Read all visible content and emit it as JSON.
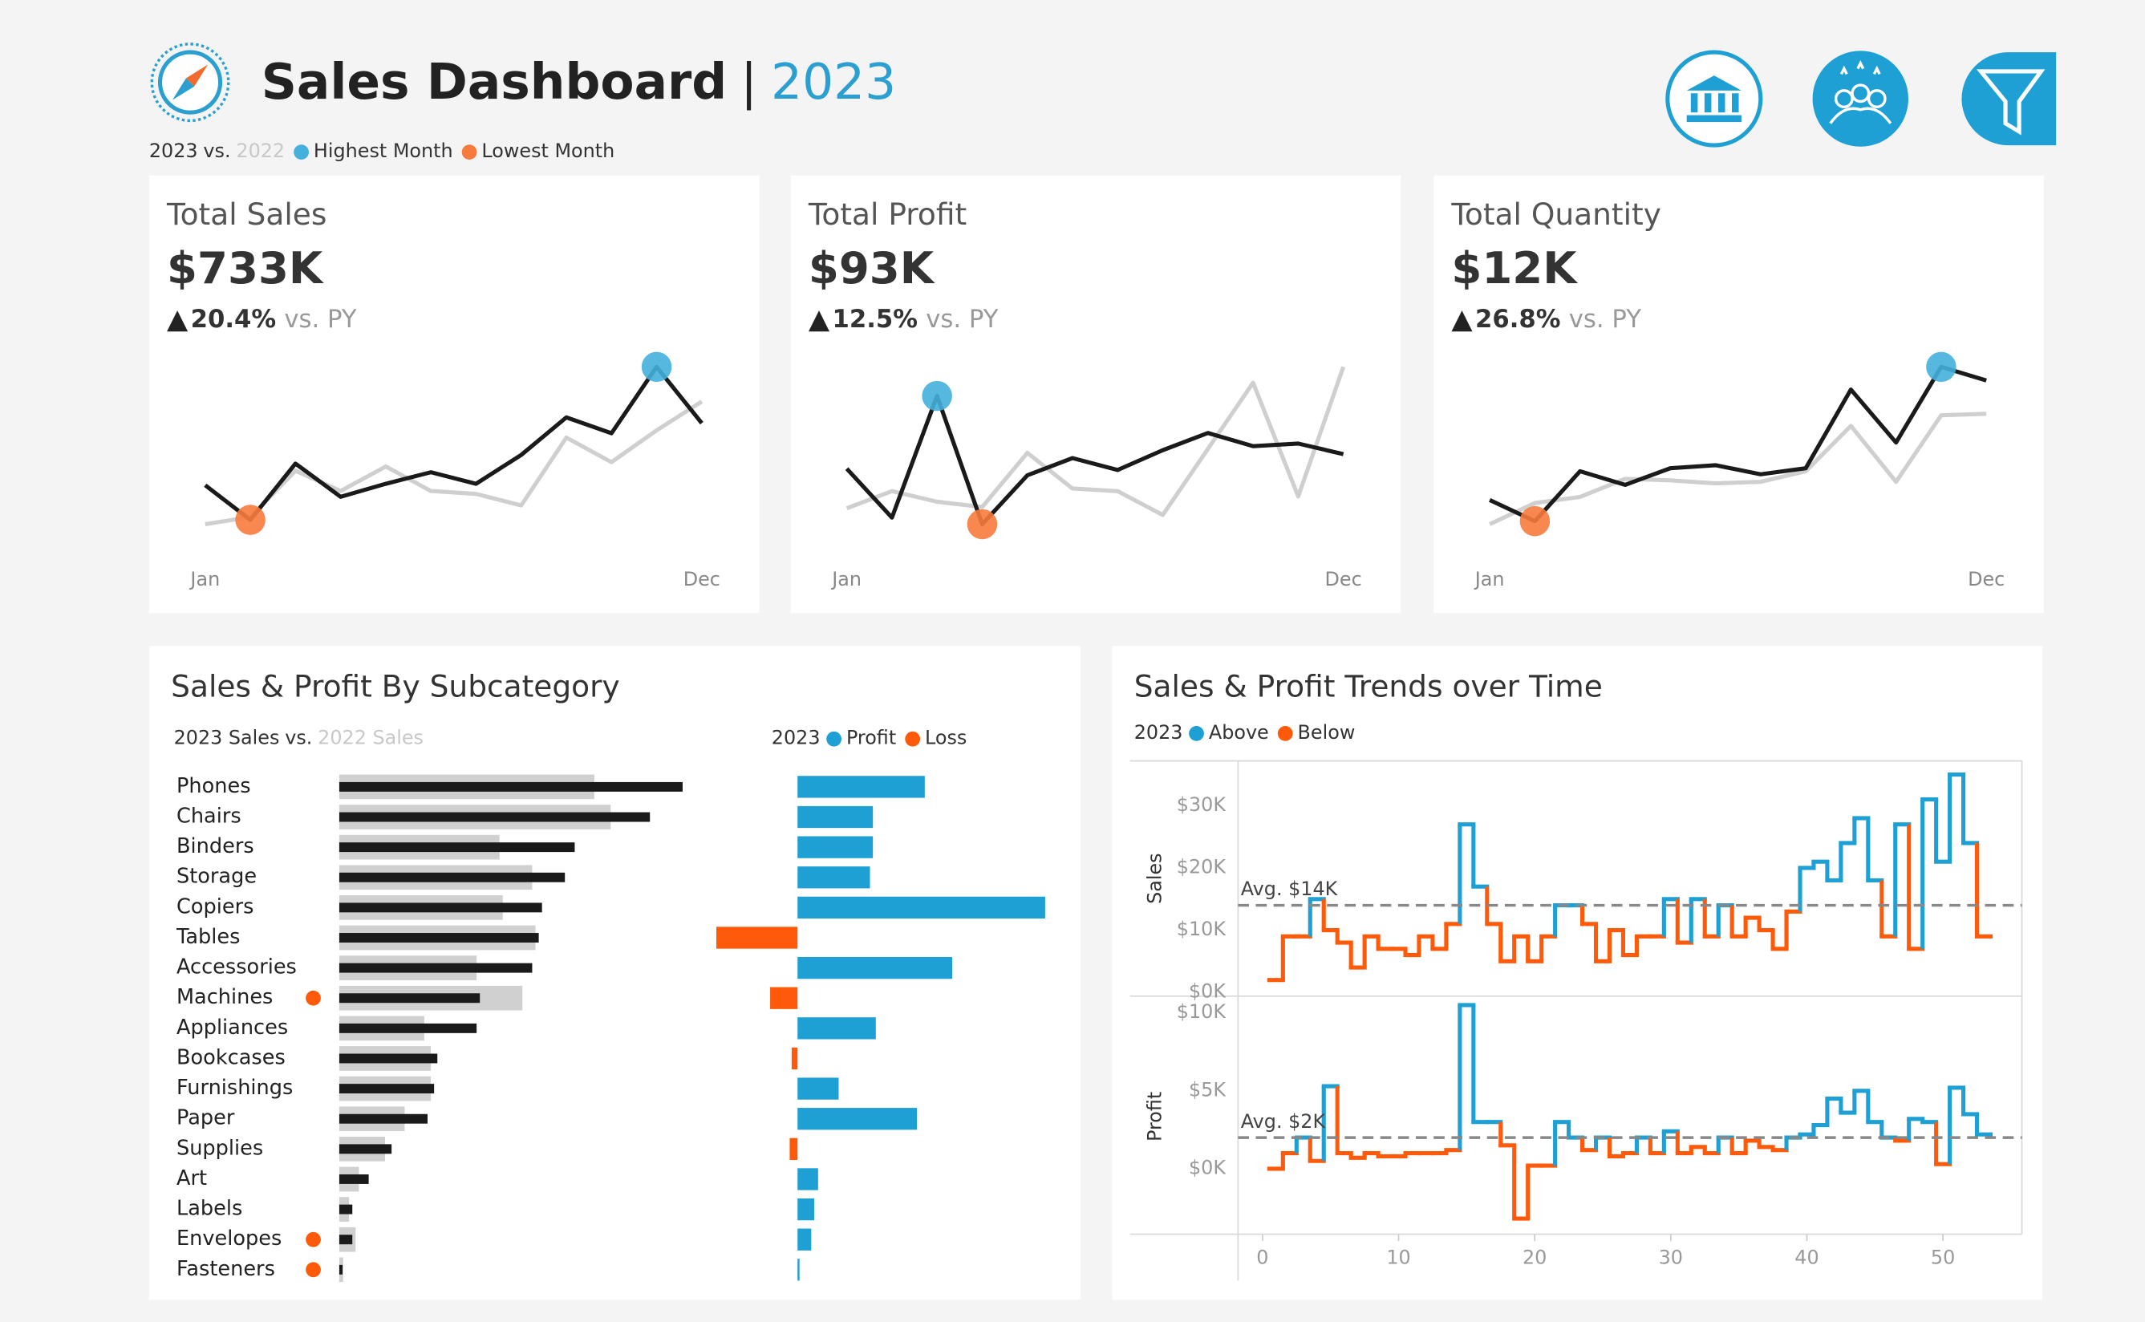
{
  "header": {
    "title": "Sales Dashboard",
    "separator": "|",
    "year": "2023",
    "legend_joiner": "vs.",
    "highest_label": "Highest Month",
    "lowest_label": "Lowest Month"
  },
  "chart_data": [
    {
      "type": "line",
      "title": "Total Sales",
      "kpi": "$733K",
      "change_arrow": "▲",
      "change": "20.4%",
      "change_suffix": "vs. PY",
      "categories": [
        "Jan",
        null,
        null,
        null,
        null,
        null,
        null,
        null,
        null,
        null,
        null,
        "Dec"
      ],
      "series": [
        {
          "name": "2023",
          "color": "#1a1a1a",
          "values": [
            36,
            24,
            43.5,
            32,
            36.5,
            40.5,
            36.5,
            46.5,
            59.5,
            54,
            77,
            57.5
          ]
        },
        {
          "name": "2022",
          "color": "#cfcfcf",
          "values": [
            22.5,
            25,
            41,
            34,
            42.5,
            34,
            33,
            29,
            52.5,
            44,
            55,
            65
          ]
        }
      ],
      "highest_color": "#45b0dc",
      "lowest_color": "#f77b3c"
    },
    {
      "type": "line",
      "title": "Total Profit",
      "kpi": "$93K",
      "change_arrow": "▲",
      "change": "12.5%",
      "change_suffix": "vs. PY",
      "categories": [
        "Jan",
        null,
        null,
        null,
        null,
        null,
        null,
        null,
        null,
        null,
        null,
        "Dec"
      ],
      "series": [
        {
          "name": "2023",
          "color": "#1a1a1a",
          "values": [
            8.5,
            4.8,
            14,
            4.3,
            8,
            9.3,
            8.4,
            9.9,
            11.2,
            10.2,
            10.4,
            9.6
          ]
        },
        {
          "name": "2022",
          "color": "#cfcfcf",
          "values": [
            5.5,
            6.8,
            6,
            5.6,
            9.7,
            7,
            6.8,
            5,
            10,
            15,
            6.4,
            16.2
          ]
        }
      ],
      "highest_color": "#45b0dc",
      "lowest_color": "#f77b3c"
    },
    {
      "type": "line",
      "title": "Total Quantity",
      "kpi": "$12K",
      "change_arrow": "▲",
      "change": "26.8%",
      "change_suffix": "vs. PY",
      "categories": [
        "Jan",
        null,
        null,
        null,
        null,
        null,
        null,
        null,
        null,
        null,
        null,
        "Dec"
      ],
      "series": [
        {
          "name": "2023",
          "color": "#1a1a1a",
          "values": [
            1.32,
            1.04,
            1.7,
            1.52,
            1.74,
            1.78,
            1.66,
            1.74,
            2.78,
            2.08,
            3.08,
            2.9
          ]
        },
        {
          "name": "2022",
          "color": "#cfcfcf",
          "values": [
            1,
            1.28,
            1.36,
            1.6,
            1.58,
            1.54,
            1.56,
            1.7,
            2.3,
            1.56,
            2.44,
            2.46
          ]
        }
      ],
      "highest_color": "#45b0dc",
      "lowest_color": "#f77b3c"
    },
    {
      "type": "hbar",
      "title": "Sales & Profit By Subcategory",
      "legend_joiner": "vs.",
      "categories": [
        "Phones",
        "Chairs",
        "Binders",
        "Storage",
        "Copiers",
        "Tables",
        "Accessories",
        "Machines",
        "Appliances",
        "Bookcases",
        "Furnishings",
        "Paper",
        "Supplies",
        "Art",
        "Labels",
        "Envelopes",
        "Fasteners"
      ],
      "series": [
        {
          "name": "2023 Sales",
          "color": "#1a1a1a",
          "values": [
            105,
            95,
            72,
            69,
            62,
            61,
            59,
            43,
            42,
            30,
            29,
            27,
            16,
            9,
            4,
            4,
            1
          ]
        },
        {
          "name": "2022 Sales",
          "color": "#d0d0d0",
          "values": [
            78,
            83,
            49,
            59,
            50,
            60,
            42,
            56,
            26,
            28,
            28,
            20,
            14,
            6,
            3,
            5,
            1.2
          ]
        }
      ],
      "decline_color": "#ff5a0a"
    },
    {
      "type": "divbar",
      "legend_year": "2023",
      "series": [
        {
          "name": "Profit",
          "color": "#1ea0d4",
          "values": [
            13,
            7.7,
            7.7,
            7.4,
            25.3,
            -8.3,
            15.8,
            -2.8,
            8,
            -0.6,
            4.2,
            12.2,
            -0.8,
            2.1,
            1.7,
            1.4,
            0.2
          ]
        }
      ],
      "negative_name": "Loss",
      "negative_color": "#ff5a0a"
    },
    {
      "type": "step",
      "title": "Sales & Profit Trends over Time",
      "legend_year": "2023",
      "above_label": "Above",
      "below_label": "Below",
      "y_label": "Sales",
      "above_color": "#1ea0d4",
      "below_color": "#ff5a0a",
      "avg": 14,
      "avg_label": "Avg. $14K",
      "x": [
        1,
        2,
        3,
        4,
        5,
        6,
        7,
        8,
        9,
        10,
        11,
        12,
        13,
        14,
        15,
        16,
        17,
        18,
        19,
        20,
        21,
        22,
        23,
        24,
        25,
        26,
        27,
        28,
        29,
        30,
        31,
        32,
        33,
        34,
        35,
        36,
        37,
        38,
        39,
        40,
        41,
        42,
        43,
        44,
        45,
        46,
        47,
        48,
        49,
        50,
        51,
        52,
        53
      ],
      "values": [
        2,
        9,
        9,
        15,
        10,
        8,
        4,
        9,
        7,
        7,
        6,
        9,
        7,
        11,
        27,
        17,
        11,
        5,
        9,
        5,
        9,
        14,
        14,
        11,
        5,
        10,
        6,
        9,
        9,
        15,
        8,
        15,
        9,
        14,
        9,
        12,
        10,
        7,
        13,
        20,
        21,
        18,
        24,
        28,
        18,
        9,
        27,
        7,
        31,
        21,
        35,
        24,
        9
      ],
      "xlim": [
        -1.8,
        55.8
      ],
      "ylim": [
        -0.6,
        37.2
      ],
      "yticks": [
        {
          "value": 0,
          "label": "$0K"
        },
        {
          "value": 10,
          "label": "$10K"
        },
        {
          "value": 20,
          "label": "$20K"
        },
        {
          "value": 30,
          "label": "$30K"
        }
      ]
    },
    {
      "type": "step",
      "y_label": "Profit",
      "above_color": "#1ea0d4",
      "below_color": "#ff5a0a",
      "avg": 2,
      "avg_label": "Avg. $2K",
      "x": [
        1,
        2,
        3,
        4,
        5,
        6,
        7,
        8,
        9,
        10,
        11,
        12,
        13,
        14,
        15,
        16,
        17,
        18,
        19,
        20,
        21,
        22,
        23,
        24,
        25,
        26,
        27,
        28,
        29,
        30,
        31,
        32,
        33,
        34,
        35,
        36,
        37,
        38,
        39,
        40,
        41,
        42,
        43,
        44,
        45,
        46,
        47,
        48,
        49,
        50,
        51,
        52,
        53
      ],
      "values": [
        0,
        1,
        2,
        0.5,
        5.3,
        1,
        0.7,
        1,
        0.8,
        0.8,
        1,
        1,
        1,
        1.2,
        10.5,
        3,
        3,
        1.5,
        -3.2,
        0.2,
        0.2,
        3,
        2,
        1.2,
        2,
        0.8,
        1,
        2,
        1,
        2.4,
        1,
        1.4,
        1,
        2,
        1,
        1.8,
        1.4,
        1.2,
        2,
        2.2,
        2.8,
        4.5,
        3.6,
        5,
        3,
        2,
        1.8,
        3.2,
        3,
        0.3,
        5.2,
        3.5,
        2.2
      ],
      "xlim": [
        -1.8,
        55.8
      ],
      "ylim": [
        -4.2,
        10.9
      ],
      "yticks": [
        {
          "value": 0,
          "label": "$0K"
        },
        {
          "value": 5,
          "label": "$5K"
        },
        {
          "value": 10,
          "label": "$10K"
        }
      ],
      "xticks": [
        0,
        10,
        20,
        30,
        40,
        50
      ]
    }
  ]
}
